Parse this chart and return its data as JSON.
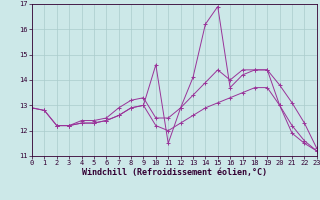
{
  "background_color": "#cce8e8",
  "grid_color": "#aacccc",
  "line_color": "#993399",
  "xlabel": "Windchill (Refroidissement éolien,°C)",
  "xlim": [
    0,
    23
  ],
  "ylim": [
    11,
    17
  ],
  "yticks": [
    11,
    12,
    13,
    14,
    15,
    16,
    17
  ],
  "xticks": [
    0,
    1,
    2,
    3,
    4,
    5,
    6,
    7,
    8,
    9,
    10,
    11,
    12,
    13,
    14,
    15,
    16,
    17,
    18,
    19,
    20,
    21,
    22,
    23
  ],
  "line1_x": [
    0,
    1,
    2,
    3,
    4,
    5,
    6,
    7,
    8,
    9,
    10,
    11,
    12,
    13,
    14,
    15,
    16,
    17,
    18,
    19,
    20,
    21,
    22,
    23
  ],
  "line1_y": [
    12.9,
    12.8,
    12.2,
    12.2,
    12.3,
    12.3,
    12.4,
    12.6,
    12.9,
    13.0,
    14.6,
    11.5,
    12.9,
    14.1,
    16.2,
    16.9,
    13.7,
    14.2,
    14.4,
    14.4,
    13.0,
    12.2,
    11.6,
    11.2
  ],
  "line2_x": [
    0,
    1,
    2,
    3,
    4,
    5,
    6,
    7,
    8,
    9,
    10,
    11,
    12,
    13,
    14,
    15,
    16,
    17,
    18,
    19,
    20,
    21,
    22,
    23
  ],
  "line2_y": [
    12.9,
    12.8,
    12.2,
    12.2,
    12.3,
    12.3,
    12.4,
    12.6,
    12.9,
    13.0,
    12.2,
    12.0,
    12.3,
    12.6,
    12.9,
    13.1,
    13.3,
    13.5,
    13.7,
    13.7,
    13.0,
    11.9,
    11.5,
    11.2
  ],
  "line3_x": [
    2,
    3,
    4,
    5,
    6,
    7,
    8,
    9,
    10,
    11,
    12,
    13,
    14,
    15,
    16,
    17,
    18,
    19,
    20,
    21,
    22,
    23
  ],
  "line3_y": [
    12.2,
    12.2,
    12.4,
    12.4,
    12.5,
    12.9,
    13.2,
    13.3,
    12.5,
    12.5,
    12.9,
    13.4,
    13.9,
    14.4,
    14.0,
    14.4,
    14.4,
    14.4,
    13.8,
    13.1,
    12.3,
    11.3
  ],
  "tick_fontsize": 5,
  "xlabel_fontsize": 6
}
